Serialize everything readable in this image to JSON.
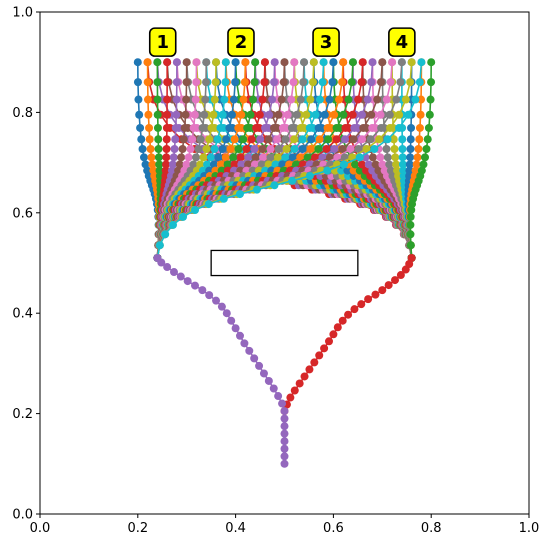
{
  "chart_data": {
    "type": "scatter",
    "xlim": [
      0.0,
      1.0
    ],
    "ylim": [
      0.0,
      1.0
    ],
    "grid": false,
    "x_ticks": [
      "0.0",
      "0.2",
      "0.4",
      "0.6",
      "0.8",
      "1.0"
    ],
    "y_ticks": [
      "0.0",
      "0.2",
      "0.4",
      "0.6",
      "0.8",
      "1.0"
    ],
    "palette": [
      "#1f77b4",
      "#ff7f0e",
      "#2ca02c",
      "#d62728",
      "#9467bd",
      "#8c564b",
      "#e377c2",
      "#7f7f7f",
      "#bcbd22",
      "#17becf"
    ],
    "obstacle": {
      "x0": 0.35,
      "x1": 0.65,
      "y0": 0.475,
      "y1": 0.525
    },
    "left_hub": [
      0.24,
      0.51
    ],
    "right_hub": [
      0.76,
      0.51
    ],
    "targets_y": 0.9,
    "left_targets_x": [
      0.2,
      0.22,
      0.24,
      0.26,
      0.28,
      0.3,
      0.32,
      0.34,
      0.36,
      0.38,
      0.4,
      0.42,
      0.44,
      0.46,
      0.48,
      0.5,
      0.52,
      0.54,
      0.56,
      0.58,
      0.6,
      0.62,
      0.64,
      0.66,
      0.68,
      0.7,
      0.72,
      0.74,
      0.76,
      0.78
    ],
    "right_targets_x": [
      0.22,
      0.24,
      0.26,
      0.28,
      0.3,
      0.32,
      0.34,
      0.36,
      0.38,
      0.4,
      0.42,
      0.44,
      0.46,
      0.48,
      0.5,
      0.52,
      0.54,
      0.56,
      0.58,
      0.6,
      0.62,
      0.64,
      0.66,
      0.68,
      0.7,
      0.72,
      0.74,
      0.76,
      0.78,
      0.8
    ],
    "trunk_left": {
      "color": "#9467bd",
      "points": [
        [
          0.5,
          0.1
        ],
        [
          0.5,
          0.115
        ],
        [
          0.5,
          0.13
        ],
        [
          0.5,
          0.145
        ],
        [
          0.5,
          0.16
        ],
        [
          0.5,
          0.175
        ],
        [
          0.5,
          0.19
        ],
        [
          0.5,
          0.205
        ],
        [
          0.495,
          0.22
        ],
        [
          0.487,
          0.235
        ],
        [
          0.478,
          0.25
        ],
        [
          0.468,
          0.265
        ],
        [
          0.458,
          0.28
        ],
        [
          0.448,
          0.295
        ],
        [
          0.438,
          0.31
        ],
        [
          0.428,
          0.325
        ],
        [
          0.418,
          0.34
        ],
        [
          0.409,
          0.355
        ],
        [
          0.4,
          0.37
        ],
        [
          0.391,
          0.385
        ],
        [
          0.382,
          0.4
        ],
        [
          0.372,
          0.413
        ],
        [
          0.36,
          0.425
        ],
        [
          0.346,
          0.436
        ],
        [
          0.332,
          0.446
        ],
        [
          0.317,
          0.455
        ],
        [
          0.302,
          0.464
        ],
        [
          0.288,
          0.473
        ],
        [
          0.274,
          0.482
        ],
        [
          0.26,
          0.492
        ],
        [
          0.248,
          0.501
        ],
        [
          0.24,
          0.51
        ]
      ]
    },
    "trunk_right": {
      "color": "#d62728",
      "points": [
        [
          0.5,
          0.205
        ],
        [
          0.505,
          0.218
        ],
        [
          0.512,
          0.232
        ],
        [
          0.521,
          0.246
        ],
        [
          0.531,
          0.26
        ],
        [
          0.541,
          0.274
        ],
        [
          0.551,
          0.288
        ],
        [
          0.561,
          0.302
        ],
        [
          0.571,
          0.316
        ],
        [
          0.581,
          0.33
        ],
        [
          0.591,
          0.344
        ],
        [
          0.6,
          0.358
        ],
        [
          0.609,
          0.372
        ],
        [
          0.619,
          0.385
        ],
        [
          0.63,
          0.397
        ],
        [
          0.643,
          0.408
        ],
        [
          0.657,
          0.418
        ],
        [
          0.671,
          0.428
        ],
        [
          0.686,
          0.437
        ],
        [
          0.7,
          0.446
        ],
        [
          0.713,
          0.456
        ],
        [
          0.726,
          0.466
        ],
        [
          0.738,
          0.476
        ],
        [
          0.748,
          0.487
        ],
        [
          0.755,
          0.498
        ],
        [
          0.76,
          0.51
        ]
      ]
    },
    "badges": [
      {
        "label": "1",
        "x": 0.251,
        "y": 0.94
      },
      {
        "label": "2",
        "x": 0.411,
        "y": 0.94
      },
      {
        "label": "3",
        "x": 0.585,
        "y": 0.94
      },
      {
        "label": "4",
        "x": 0.74,
        "y": 0.94
      }
    ],
    "badge_fill": "#ffff00"
  }
}
